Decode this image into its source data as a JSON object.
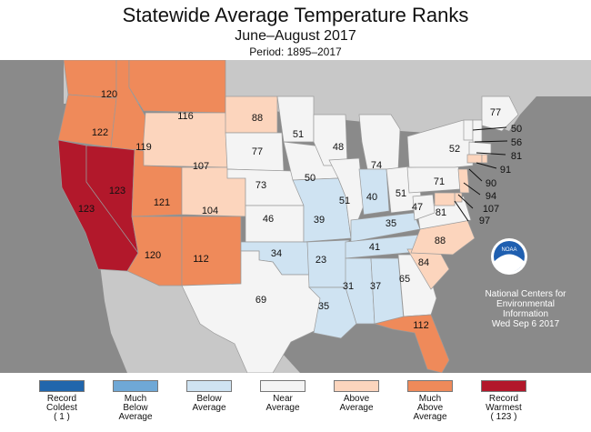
{
  "title": "Statewide Average Temperature Ranks",
  "subtitle": "June–August 2017",
  "period": "Period: 1895–2017",
  "colors": {
    "record_coldest": "#2166ac",
    "much_below": "#6fa8d6",
    "below": "#cfe3f2",
    "near": "#f4f4f4",
    "above": "#fcd5bd",
    "much_above": "#ef8a5a",
    "record_warmest": "#b2182b",
    "ocean": "#8a8a8a",
    "land_outside": "#c8c8c8"
  },
  "states": [
    {
      "abbr": "WA",
      "rank": "120",
      "category": "much_above"
    },
    {
      "abbr": "OR",
      "rank": "122",
      "category": "much_above"
    },
    {
      "abbr": "CA",
      "rank": "123",
      "category": "record_warmest"
    },
    {
      "abbr": "NV",
      "rank": "123",
      "category": "record_warmest"
    },
    {
      "abbr": "ID",
      "rank": "119",
      "category": "much_above"
    },
    {
      "abbr": "MT",
      "rank": "116",
      "category": "much_above"
    },
    {
      "abbr": "WY",
      "rank": "107",
      "category": "above"
    },
    {
      "abbr": "UT",
      "rank": "121",
      "category": "much_above"
    },
    {
      "abbr": "CO",
      "rank": "104",
      "category": "above"
    },
    {
      "abbr": "AZ",
      "rank": "120",
      "category": "much_above"
    },
    {
      "abbr": "NM",
      "rank": "112",
      "category": "much_above"
    },
    {
      "abbr": "ND",
      "rank": "88",
      "category": "above"
    },
    {
      "abbr": "SD",
      "rank": "77",
      "category": "near"
    },
    {
      "abbr": "NE",
      "rank": "73",
      "category": "near"
    },
    {
      "abbr": "KS",
      "rank": "46",
      "category": "near"
    },
    {
      "abbr": "OK",
      "rank": "34",
      "category": "below"
    },
    {
      "abbr": "TX",
      "rank": "69",
      "category": "near"
    },
    {
      "abbr": "MN",
      "rank": "51",
      "category": "near"
    },
    {
      "abbr": "IA",
      "rank": "50",
      "category": "near"
    },
    {
      "abbr": "MO",
      "rank": "39",
      "category": "below"
    },
    {
      "abbr": "AR",
      "rank": "23",
      "category": "below"
    },
    {
      "abbr": "LA",
      "rank": "35",
      "category": "below"
    },
    {
      "abbr": "WI",
      "rank": "48",
      "category": "near"
    },
    {
      "abbr": "IL",
      "rank": "51",
      "category": "near"
    },
    {
      "abbr": "MI",
      "rank": "74",
      "category": "near"
    },
    {
      "abbr": "IN",
      "rank": "40",
      "category": "below"
    },
    {
      "abbr": "OH",
      "rank": "51",
      "category": "near"
    },
    {
      "abbr": "KY",
      "rank": "35",
      "category": "below"
    },
    {
      "abbr": "TN",
      "rank": "41",
      "category": "below"
    },
    {
      "abbr": "MS",
      "rank": "31",
      "category": "below"
    },
    {
      "abbr": "AL",
      "rank": "37",
      "category": "below"
    },
    {
      "abbr": "GA",
      "rank": "65",
      "category": "near"
    },
    {
      "abbr": "FL",
      "rank": "112",
      "category": "much_above"
    },
    {
      "abbr": "SC",
      "rank": "84",
      "category": "above"
    },
    {
      "abbr": "NC",
      "rank": "88",
      "category": "above"
    },
    {
      "abbr": "VA",
      "rank": "81",
      "category": "near"
    },
    {
      "abbr": "WV",
      "rank": "47",
      "category": "near"
    },
    {
      "abbr": "PA",
      "rank": "71",
      "category": "near"
    },
    {
      "abbr": "NY",
      "rank": "52",
      "category": "near"
    },
    {
      "abbr": "ME",
      "rank": "77",
      "category": "near"
    },
    {
      "abbr": "VT",
      "rank": "50",
      "category": "near"
    },
    {
      "abbr": "NH",
      "rank": "56",
      "category": "near"
    },
    {
      "abbr": "MA",
      "rank": "81",
      "category": "near"
    },
    {
      "abbr": "CT",
      "rank": "91",
      "category": "above"
    },
    {
      "abbr": "NJ",
      "rank": "90",
      "category": "above"
    },
    {
      "abbr": "DE",
      "rank": "94",
      "category": "above"
    },
    {
      "abbr": "MD",
      "rank": "107",
      "category": "above"
    },
    {
      "abbr": "RI",
      "rank": "97",
      "category": "above"
    }
  ],
  "noaa": {
    "logo_text": "NOAA",
    "lines": [
      "National Centers for",
      "Environmental",
      "Information",
      "Wed Sep  6 2017"
    ]
  },
  "legend": [
    {
      "key": "record_coldest",
      "lines": [
        "Record",
        "Coldest",
        "( 1 )"
      ]
    },
    {
      "key": "much_below",
      "lines": [
        "Much",
        "Below",
        "Average"
      ]
    },
    {
      "key": "below",
      "lines": [
        "Below",
        "Average"
      ]
    },
    {
      "key": "near",
      "lines": [
        "Near",
        "Average"
      ]
    },
    {
      "key": "above",
      "lines": [
        "Above",
        "Average"
      ]
    },
    {
      "key": "much_above",
      "lines": [
        "Much",
        "Above",
        "Average"
      ]
    },
    {
      "key": "record_warmest",
      "lines": [
        "Record",
        "Warmest",
        "( 123 )"
      ]
    }
  ]
}
